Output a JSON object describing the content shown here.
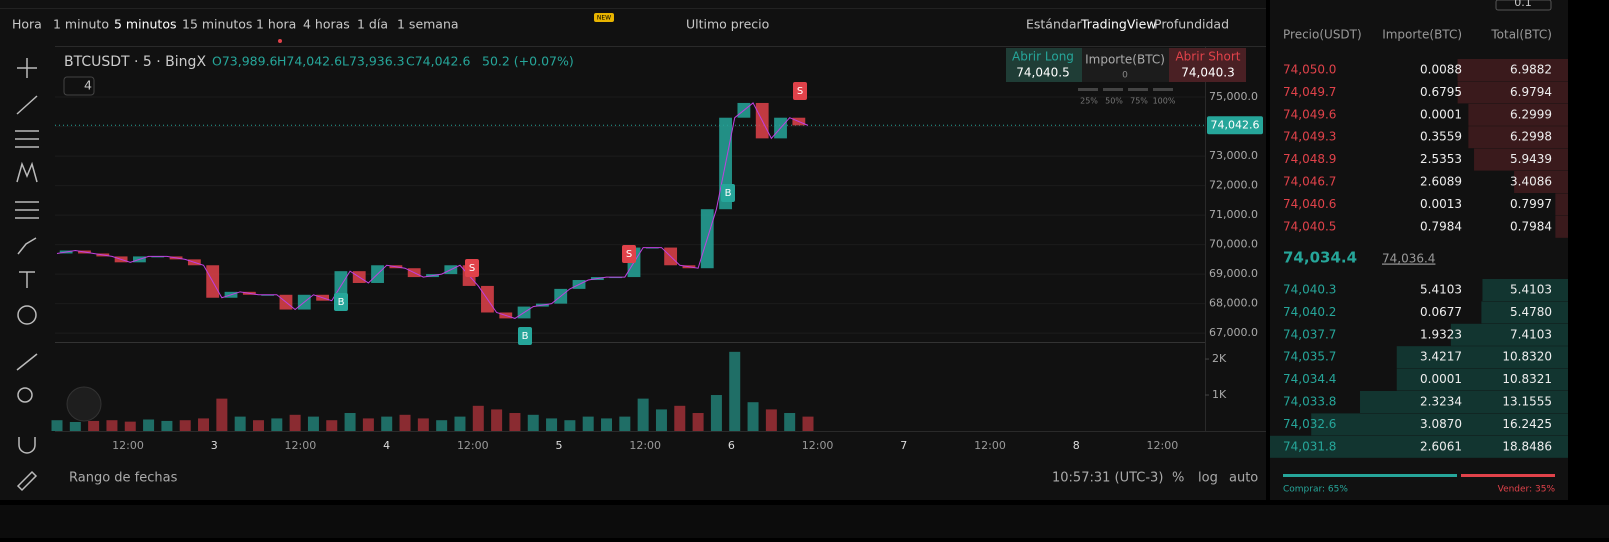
{
  "toolbar": {
    "intervals": [
      "Hora",
      "1 minuto",
      "5 minutos",
      "15 minutos",
      "1 hora",
      "4 horas",
      "1 día",
      "1 semana"
    ],
    "new_badge": "NEW",
    "price_type": "Ultimo precio",
    "views": [
      "Estándar",
      "TradingView",
      "Profundidad"
    ]
  },
  "chart": {
    "symbol": "BTCUSDT · 5 · BingX",
    "ohlc": [
      "O73,989.6",
      "H74,042.6",
      "L73,936.3",
      "C74,042.6",
      "50.2 (+0.07%)"
    ],
    "indicator_count": "4",
    "ylim": [
      66700,
      76730
    ],
    "yticks": [
      {
        "value": 75000,
        "label": "75,000.0"
      },
      {
        "value": 74000,
        "label": "74,000.0"
      },
      {
        "value": 73000,
        "label": "73,000.0"
      },
      {
        "value": 72000,
        "label": "72,000.0"
      },
      {
        "value": 71000,
        "label": "71,000.0"
      },
      {
        "value": 70000,
        "label": "70,000.0"
      },
      {
        "value": 69000,
        "label": "69,000.0"
      },
      {
        "value": 68000,
        "label": "68,000.0"
      },
      {
        "value": 67000,
        "label": "67,000.0"
      }
    ],
    "last_price": {
      "value": 74042.6,
      "label": "74,042.6"
    },
    "close": [
      69700,
      69800,
      69700,
      69600,
      69400,
      69600,
      69600,
      69500,
      69300,
      68200,
      68400,
      68300,
      68300,
      67800,
      68300,
      68100,
      69100,
      68700,
      69300,
      69200,
      68900,
      69000,
      69300,
      68600,
      67700,
      67500,
      67900,
      68000,
      68500,
      68800,
      68900,
      68900,
      69900,
      69900,
      69300,
      69200,
      71200,
      74300,
      74800,
      73600,
      74300,
      74040
    ],
    "signals": [
      "B",
      "S",
      "B",
      "S",
      "B",
      "S"
    ],
    "volume": {
      "ylim": [
        0,
        2390
      ],
      "yticks": [
        {
          "value": 1000,
          "label": "1K"
        },
        {
          "value": 2000,
          "label": "2K"
        }
      ],
      "values": [
        300,
        250,
        280,
        300,
        260,
        320,
        280,
        300,
        350,
        900,
        400,
        300,
        350,
        450,
        400,
        300,
        500,
        350,
        400,
        450,
        350,
        300,
        400,
        700,
        600,
        500,
        450,
        350,
        300,
        400,
        350,
        400,
        900,
        600,
        700,
        500,
        1000,
        2200,
        800,
        600,
        500,
        400
      ]
    },
    "xticks": [
      "12:00",
      "3",
      "12:00",
      "4",
      "12:00",
      "5",
      "12:00",
      "6",
      "12:00",
      "7",
      "12:00",
      "8",
      "12:00"
    ]
  },
  "trade_panel": {
    "buy": "Abrir Long",
    "buy_price": "74,040.5",
    "amount_label": "Importe(BTC)",
    "amount": "0",
    "sell": "Abrir Short",
    "sell_price": "74,040.3",
    "percents": [
      "25%",
      "50%",
      "75%",
      "100%"
    ]
  },
  "bottom": {
    "range": "Rango de fechas",
    "time": "10:57:31 (UTC-3)",
    "options": [
      "%",
      "log",
      "auto"
    ]
  },
  "orderbook": {
    "size": "0.1",
    "headers": [
      "Precio(USDT)",
      "Importe(BTC)",
      "Total(BTC)"
    ],
    "asks": [
      [
        "74,050.0",
        "0.0088",
        "6.9882"
      ],
      [
        "74,049.7",
        "0.6795",
        "6.9794"
      ],
      [
        "74,049.6",
        "0.0001",
        "6.2999"
      ],
      [
        "74,049.3",
        "0.3559",
        "6.2998"
      ],
      [
        "74,048.9",
        "2.5353",
        "5.9439"
      ],
      [
        "74,046.7",
        "2.6089",
        "3.4086"
      ],
      [
        "74,040.6",
        "0.0013",
        "0.7997"
      ],
      [
        "74,040.5",
        "0.7984",
        "0.7984"
      ]
    ],
    "mid_price": "74,034.4",
    "mark_price": "74,036.4",
    "bids": [
      [
        "74,040.3",
        "5.4103",
        "5.4103"
      ],
      [
        "74,040.2",
        "0.0677",
        "5.4780"
      ],
      [
        "74,037.7",
        "1.9323",
        "7.4103"
      ],
      [
        "74,035.7",
        "3.4217",
        "10.8320"
      ],
      [
        "74,034.4",
        "0.0001",
        "10.8321"
      ],
      [
        "74,033.8",
        "2.3234",
        "13.1555"
      ],
      [
        "74,032.6",
        "3.0870",
        "16.2425"
      ],
      [
        "74,031.8",
        "2.6061",
        "18.8486"
      ]
    ],
    "buy_ratio": "Comprar: 65%",
    "sell_ratio": "Vender: 35%"
  }
}
